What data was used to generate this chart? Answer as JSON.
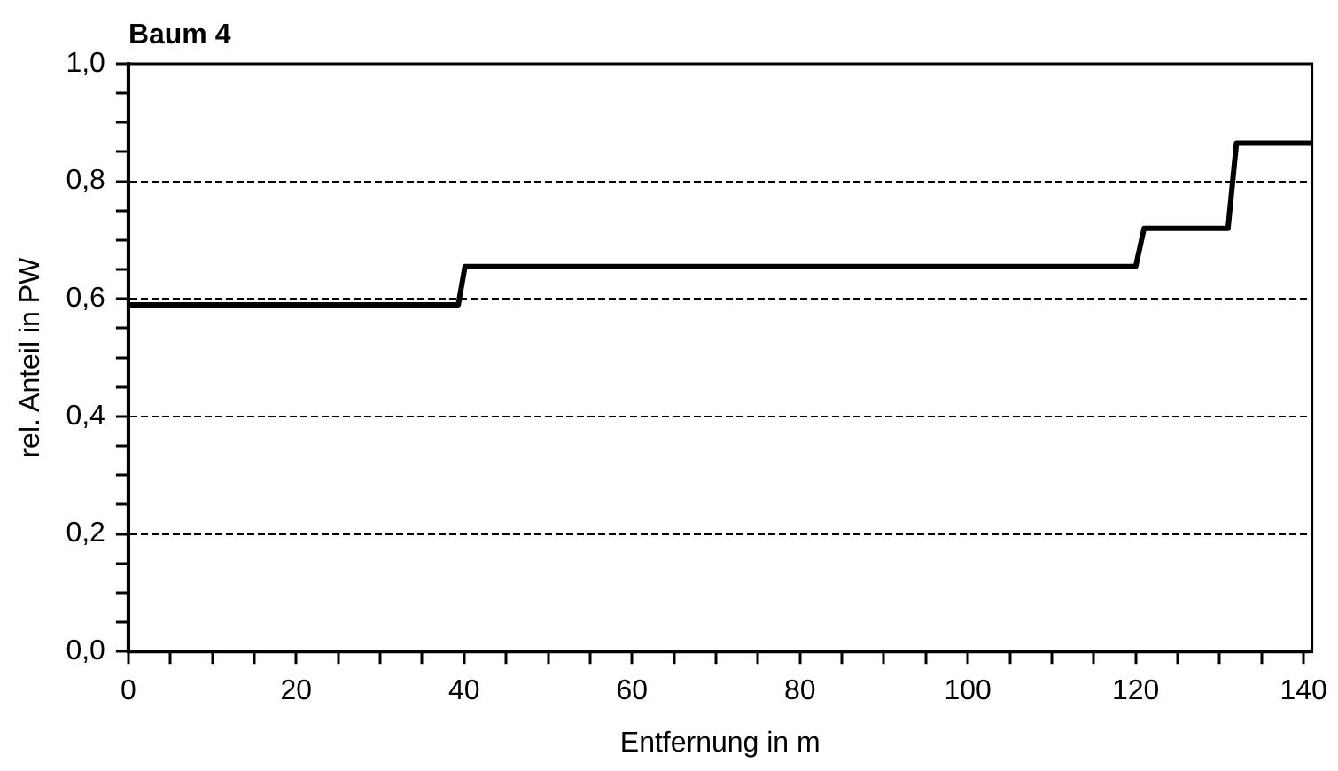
{
  "chart_data": {
    "type": "line",
    "title": "Baum 4",
    "xlabel": "Entfernung in m",
    "ylabel": "rel. Anteil in PW",
    "x": [
      0,
      39.3,
      40.1,
      120,
      121,
      131,
      132,
      141
    ],
    "series": [
      {
        "color": "#000000",
        "values": [
          0.59,
          0.59,
          0.655,
          0.655,
          0.72,
          0.72,
          0.865,
          0.865
        ]
      }
    ],
    "xlim": [
      0,
      141
    ],
    "xticks": [
      0,
      {
        "value": 5,
        "label": null
      },
      {
        "value": 10,
        "label": null
      },
      {
        "value": 15,
        "label": null
      },
      20,
      {
        "value": 25,
        "label": null
      },
      {
        "value": 30,
        "label": null
      },
      {
        "value": 35,
        "label": null
      },
      40,
      {
        "value": 45,
        "label": null
      },
      {
        "value": 50,
        "label": null
      },
      {
        "value": 55,
        "label": null
      },
      60,
      {
        "value": 65,
        "label": null
      },
      {
        "value": 70,
        "label": null
      },
      {
        "value": 75,
        "label": null
      },
      80,
      {
        "value": 85,
        "label": null
      },
      {
        "value": 90,
        "label": null
      },
      {
        "value": 95,
        "label": null
      },
      100,
      {
        "value": 105,
        "label": null
      },
      {
        "value": 110,
        "label": null
      },
      {
        "value": 115,
        "label": null
      },
      120,
      {
        "value": 125,
        "label": null
      },
      {
        "value": 130,
        "label": null
      },
      {
        "value": 135,
        "label": null
      },
      140
    ],
    "ylim": [
      0,
      1
    ],
    "yticks": [
      {
        "value": 0,
        "label": "0,0"
      },
      {
        "value": 0.05,
        "label": null
      },
      {
        "value": 0.1,
        "label": null
      },
      {
        "value": 0.15,
        "label": null
      },
      {
        "value": 0.2,
        "label": "0,2"
      },
      {
        "value": 0.25,
        "label": null
      },
      {
        "value": 0.3,
        "label": null
      },
      {
        "value": 0.35,
        "label": null
      },
      {
        "value": 0.4,
        "label": "0,4"
      },
      {
        "value": 0.45,
        "label": null
      },
      {
        "value": 0.5,
        "label": null
      },
      {
        "value": 0.55,
        "label": null
      },
      {
        "value": 0.6,
        "label": "0,6"
      },
      {
        "value": 0.65,
        "label": null
      },
      {
        "value": 0.7,
        "label": null
      },
      {
        "value": 0.75,
        "label": null
      },
      {
        "value": 0.8,
        "label": "0,8"
      },
      {
        "value": 0.85,
        "label": null
      },
      {
        "value": 0.9,
        "label": null
      },
      {
        "value": 0.95,
        "label": null
      },
      {
        "value": 1,
        "label": "1,0"
      }
    ],
    "grid": "y",
    "legend": false,
    "marker": "none",
    "line_style": "solid"
  }
}
